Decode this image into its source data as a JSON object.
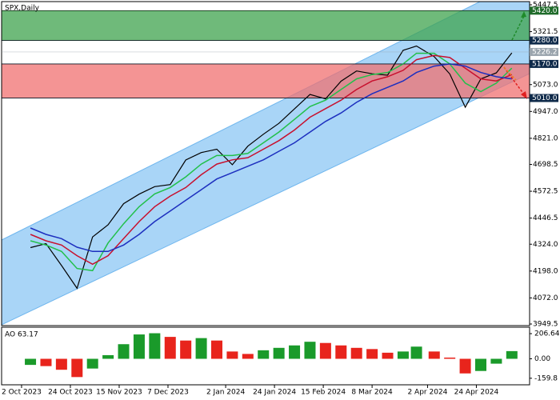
{
  "chart_data": [
    {
      "type": "line",
      "title": "SPX,Daily",
      "x": [
        "2023-10-06",
        "2023-10-13",
        "2023-10-20",
        "2023-10-27",
        "2023-11-03",
        "2023-11-10",
        "2023-11-17",
        "2023-11-24",
        "2023-12-01",
        "2023-12-08",
        "2023-12-15",
        "2023-12-22",
        "2023-12-29",
        "2024-01-05",
        "2024-01-12",
        "2024-01-19",
        "2024-01-26",
        "2024-02-02",
        "2024-02-09",
        "2024-02-16",
        "2024-02-23",
        "2024-03-01",
        "2024-03-08",
        "2024-03-15",
        "2024-03-22",
        "2024-03-28",
        "2024-04-05",
        "2024-04-12",
        "2024-04-19",
        "2024-04-26",
        "2024-05-03",
        "2024-05-10"
      ],
      "series": [
        {
          "color": "#000000",
          "values": [
            4308,
            4327,
            4224,
            4117,
            4358,
            4415,
            4514,
            4559,
            4594,
            4604,
            4719,
            4754,
            4770,
            4697,
            4784,
            4840,
            4891,
            4959,
            5027,
            5006,
            5089,
            5137,
            5124,
            5117,
            5234,
            5254,
            5204,
            5123,
            4967,
            5100,
            5128,
            5222
          ]
        },
        {
          "color": "#22c04a",
          "values": [
            4340,
            4320,
            4290,
            4210,
            4200,
            4330,
            4420,
            4500,
            4560,
            4590,
            4640,
            4700,
            4740,
            4740,
            4750,
            4800,
            4850,
            4910,
            4970,
            5000,
            5050,
            5100,
            5120,
            5130,
            5170,
            5220,
            5220,
            5170,
            5080,
            5040,
            5080,
            5150
          ]
        },
        {
          "color": "#c8102e",
          "values": [
            4370,
            4340,
            4320,
            4270,
            4230,
            4270,
            4350,
            4430,
            4500,
            4550,
            4590,
            4650,
            4700,
            4720,
            4730,
            4770,
            4810,
            4860,
            4920,
            4960,
            5000,
            5050,
            5090,
            5110,
            5140,
            5190,
            5210,
            5200,
            5150,
            5100,
            5090,
            5120
          ]
        },
        {
          "color": "#1d2fbf",
          "values": [
            4400,
            4370,
            4350,
            4310,
            4290,
            4290,
            4320,
            4370,
            4430,
            4480,
            4530,
            4580,
            4630,
            4660,
            4690,
            4720,
            4760,
            4800,
            4850,
            4900,
            4940,
            4990,
            5030,
            5060,
            5090,
            5130,
            5160,
            5170,
            5160,
            5130,
            5110,
            5100
          ]
        }
      ],
      "xlim": [
        "2023-09-23",
        "2024-05-18"
      ],
      "ylim": [
        3949.5,
        5447.5
      ],
      "yticks": [
        3949.5,
        {
          "value": 4072.0,
          "label": "4072.0"
        },
        {
          "value": 4198.0,
          "label": "4198.0"
        },
        {
          "value": 4324.0,
          "label": "4324.0"
        },
        4446.5,
        4572.5,
        4698.5,
        {
          "value": 4821.0,
          "label": "4821.0"
        },
        {
          "value": 4947.0,
          "label": "4947.0"
        },
        {
          "value": 5073.0,
          "label": "5073.0"
        },
        5321.5,
        5447.5
      ],
      "zones": [
        {
          "from": 5280,
          "to": 5420,
          "color": "#3fa34d"
        },
        {
          "from": 5010,
          "to": 5170,
          "color": "#f07070"
        }
      ],
      "levels": [
        {
          "value": 5420,
          "label": "5420.0",
          "color": "#1f6b2a"
        },
        {
          "value": 5280,
          "label": "5280.0",
          "color": "#0f2a4a"
        },
        {
          "value": 5226.2,
          "label": "5226.2",
          "color": "#9aa4ad"
        },
        {
          "value": 5170,
          "label": "5170.0",
          "color": "#0f2a4a"
        },
        {
          "value": 5010,
          "label": "5010.0",
          "color": "#0f2a4a"
        }
      ]
    },
    {
      "type": "bar",
      "title": "AO 63.17",
      "x": [
        "2023-10-06",
        "2023-10-13",
        "2023-10-20",
        "2023-10-27",
        "2023-11-03",
        "2023-11-10",
        "2023-11-17",
        "2023-11-24",
        "2023-12-01",
        "2023-12-08",
        "2023-12-15",
        "2023-12-22",
        "2023-12-29",
        "2024-01-05",
        "2024-01-12",
        "2024-01-19",
        "2024-01-26",
        "2024-02-02",
        "2024-02-09",
        "2024-02-16",
        "2024-02-23",
        "2024-03-01",
        "2024-03-08",
        "2024-03-15",
        "2024-03-22",
        "2024-03-28",
        "2024-04-05",
        "2024-04-12",
        "2024-04-19",
        "2024-04-26",
        "2024-05-03",
        "2024-05-10"
      ],
      "values": [
        -50,
        -60,
        -90,
        -150,
        -80,
        30,
        120,
        200,
        210,
        180,
        150,
        170,
        150,
        60,
        40,
        70,
        90,
        110,
        140,
        130,
        110,
        90,
        80,
        50,
        60,
        100,
        60,
        10,
        -120,
        -100,
        -40,
        63.17
      ],
      "up_color": "#1a9a2a",
      "down_color": "#e8241c",
      "xlim": [
        "2023-09-23",
        "2024-05-18"
      ],
      "ylim": [
        -207,
        253
      ],
      "yticks": [
        206.64,
        {
          "value": 0,
          "label": "0.00"
        },
        -159.8
      ],
      "xticks": [
        {
          "value": "2023-10-02",
          "label": "2 Oct 2023"
        },
        {
          "value": "2023-10-24",
          "label": "24 Oct 2023"
        },
        {
          "value": "2023-11-15",
          "label": "15 Nov 2023"
        },
        {
          "value": "2023-12-07",
          "label": "7 Dec 2023"
        },
        {
          "value": "2024-01-02",
          "label": "2 Jan 2024"
        },
        {
          "value": "2024-01-24",
          "label": "24 Jan 2024"
        },
        {
          "value": "2024-02-15",
          "label": "15 Feb 2024"
        },
        {
          "value": "2024-03-08",
          "label": "8 Mar 2024"
        },
        {
          "value": "2024-04-02",
          "label": "2 Apr 2024"
        },
        {
          "value": "2024-04-24",
          "label": "24 Apr 2024"
        }
      ]
    }
  ]
}
